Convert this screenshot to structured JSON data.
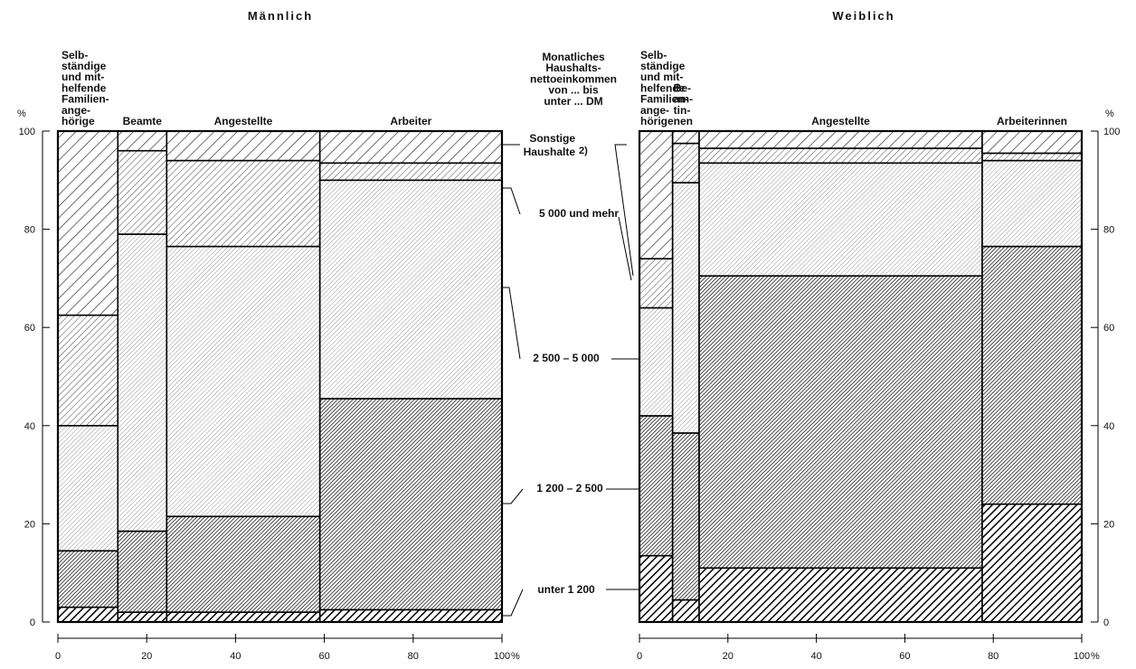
{
  "chart_data": [
    {
      "type": "mosaic",
      "panel_title": "Männlich",
      "y_unit": "%",
      "x_unit": "%",
      "y_ticks": [
        0,
        20,
        40,
        60,
        80,
        100
      ],
      "x_ticks": [
        0,
        20,
        40,
        60,
        80,
        100
      ],
      "columns": [
        {
          "label": [
            "Selb-",
            "ständige",
            "und mit-",
            "helfende",
            "Familien-",
            "ange-",
            "hörige"
          ],
          "width": 13.5,
          "stack": [
            {
              "band": "unter 1 200",
              "value": 3.0
            },
            {
              "band": "1 200 – 2 500",
              "value": 11.5
            },
            {
              "band": "2 500 – 5 000",
              "value": 25.5
            },
            {
              "band": "5 000 und mehr",
              "value": 22.5
            },
            {
              "band": "Sonstige Haushalte",
              "value": 37.5
            }
          ]
        },
        {
          "label": [
            "Beamte"
          ],
          "width": 11.0,
          "stack": [
            {
              "band": "unter 1 200",
              "value": 2.0
            },
            {
              "band": "1 200 – 2 500",
              "value": 16.5
            },
            {
              "band": "2 500 – 5 000",
              "value": 60.5
            },
            {
              "band": "5 000 und mehr",
              "value": 17.0
            },
            {
              "band": "Sonstige Haushalte",
              "value": 4.0
            }
          ]
        },
        {
          "label": [
            "Angestellte"
          ],
          "width": 34.5,
          "stack": [
            {
              "band": "unter 1 200",
              "value": 2.0
            },
            {
              "band": "1 200 – 2 500",
              "value": 19.5
            },
            {
              "band": "2 500 – 5 000",
              "value": 55.0
            },
            {
              "band": "5 000 und mehr",
              "value": 17.5
            },
            {
              "band": "Sonstige Haushalte",
              "value": 6.0
            }
          ]
        },
        {
          "label": [
            "Arbeiter"
          ],
          "width": 41.0,
          "stack": [
            {
              "band": "unter 1 200",
              "value": 2.5
            },
            {
              "band": "1 200 – 2 500",
              "value": 43.0
            },
            {
              "band": "2 500 – 5 000",
              "value": 44.5
            },
            {
              "band": "5 000 und mehr",
              "value": 3.5
            },
            {
              "band": "Sonstige Haushalte",
              "value": 6.5
            }
          ]
        }
      ]
    },
    {
      "type": "mosaic",
      "panel_title": "Weiblich",
      "y_unit": "%",
      "x_unit": "%",
      "y_ticks": [
        0,
        20,
        40,
        60,
        80,
        100
      ],
      "x_ticks": [
        0,
        20,
        40,
        60,
        80,
        100
      ],
      "columns": [
        {
          "label": [
            "Selb-",
            "ständige",
            "und mit-",
            "helfende",
            "Familien-",
            "ange-",
            "hörige"
          ],
          "width": 7.5,
          "stack": [
            {
              "band": "unter 1 200",
              "value": 13.5
            },
            {
              "band": "1 200 – 2 500",
              "value": 28.5
            },
            {
              "band": "2 500 – 5 000",
              "value": 22.0
            },
            {
              "band": "5 000 und mehr",
              "value": 10.0
            },
            {
              "band": "Sonstige Haushalte",
              "value": 26.0
            }
          ]
        },
        {
          "label": [
            "Be-",
            "am-",
            "tin-",
            "nen"
          ],
          "width": 6.0,
          "stack": [
            {
              "band": "unter 1 200",
              "value": 4.5
            },
            {
              "band": "1 200 – 2 500",
              "value": 34.0
            },
            {
              "band": "2 500 – 5 000",
              "value": 51.0
            },
            {
              "band": "5 000 und mehr",
              "value": 8.0
            },
            {
              "band": "Sonstige Haushalte",
              "value": 2.5
            }
          ]
        },
        {
          "label": [
            "Angestellte"
          ],
          "width": 64.0,
          "stack": [
            {
              "band": "unter 1 200",
              "value": 11.0
            },
            {
              "band": "1 200 – 2 500",
              "value": 59.5
            },
            {
              "band": "2 500 – 5 000",
              "value": 23.0
            },
            {
              "band": "5 000 und mehr",
              "value": 3.0
            },
            {
              "band": "Sonstige Haushalte",
              "value": 3.5
            }
          ]
        },
        {
          "label": [
            "Arbeiterinnen"
          ],
          "width": 22.5,
          "stack": [
            {
              "band": "unter 1 200",
              "value": 24.0
            },
            {
              "band": "1 200 – 2 500",
              "value": 52.5
            },
            {
              "band": "2 500 – 5 000",
              "value": 17.5
            },
            {
              "band": "5 000 und mehr",
              "value": 1.5
            },
            {
              "band": "Sonstige Haushalte",
              "value": 4.5
            }
          ]
        }
      ]
    }
  ],
  "legend": {
    "heading": [
      "Monatliches",
      "Haushalts-",
      "nettoeinkommen",
      "von ... bis",
      "unter ... DM"
    ],
    "items": [
      {
        "key": "sonstige",
        "label": [
          "Sonstige",
          "Haushalte"
        ],
        "sup": "2)"
      },
      {
        "key": "b5000",
        "label": [
          "5 000 und mehr"
        ],
        "sup": ""
      },
      {
        "key": "b2500",
        "label": [
          "2 500 – 5 000"
        ],
        "sup": ""
      },
      {
        "key": "b1200",
        "label": [
          "1 200 – 2 500"
        ],
        "sup": ""
      },
      {
        "key": "u1200",
        "label": [
          "unter 1 200"
        ],
        "sup": ""
      }
    ]
  }
}
